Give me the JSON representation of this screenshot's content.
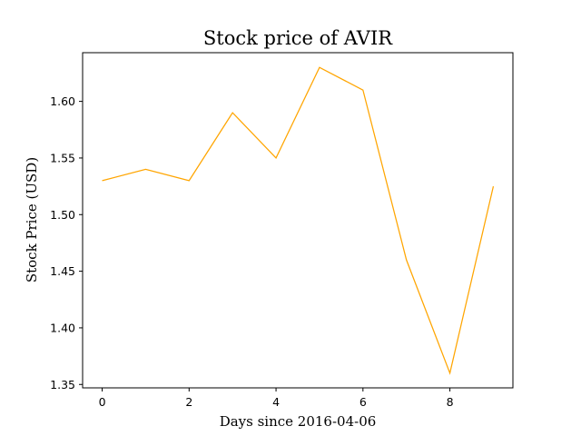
{
  "chart_data": {
    "type": "line",
    "title": "Stock price of AVIR",
    "xlabel": "Days since 2016-04-06",
    "ylabel": "Stock Price (USD)",
    "xlim": [
      -0.45,
      9.45
    ],
    "ylim": [
      1.347,
      1.643
    ],
    "xticks": [
      0,
      2,
      4,
      6,
      8
    ],
    "xtick_labels": [
      "0",
      "2",
      "4",
      "6",
      "8"
    ],
    "yticks": [
      1.35,
      1.4,
      1.45,
      1.5,
      1.55,
      1.6
    ],
    "ytick_labels": [
      "1.35",
      "1.40",
      "1.45",
      "1.50",
      "1.55",
      "1.60"
    ],
    "grid": false,
    "series": [
      {
        "color": "#ffa500",
        "x": [
          0,
          1,
          2,
          3,
          4,
          5,
          6,
          7,
          8,
          9
        ],
        "y": [
          1.53,
          1.54,
          1.53,
          1.59,
          1.55,
          1.63,
          1.61,
          1.46,
          1.36,
          1.525
        ]
      }
    ]
  }
}
